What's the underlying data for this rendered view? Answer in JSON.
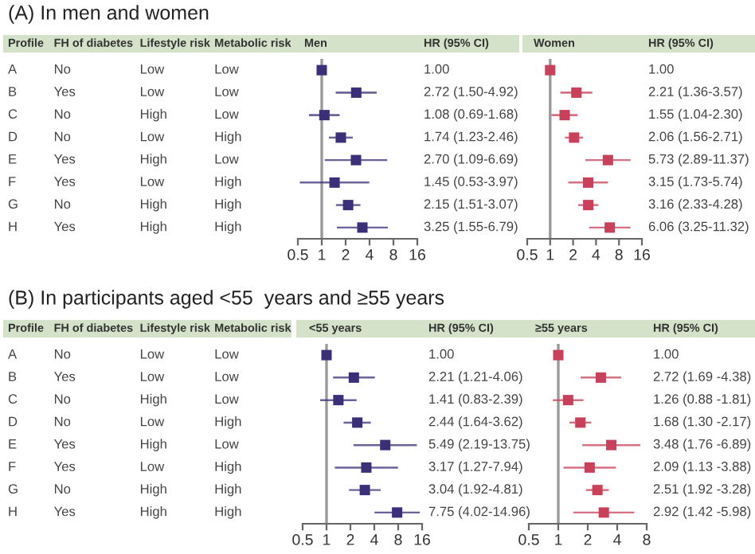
{
  "chart_data": [
    {
      "type": "other",
      "title": "(A) In men and women",
      "categories": [
        "Profile",
        "FH of diabetes",
        "Lifestyle risk",
        "Metabolic risk"
      ],
      "annotations": [
        "A",
        "No",
        "Low",
        "Low",
        "B",
        "Yes",
        "Low",
        "Low",
        "C",
        "No",
        "High",
        "Low",
        "D",
        "No",
        "Low",
        "High",
        "E",
        "Yes",
        "High",
        "Low",
        "F",
        "Yes",
        "Low",
        "High",
        "G",
        "No",
        "High",
        "High",
        "H",
        "Yes",
        "High",
        "High"
      ]
    },
    {
      "type": "scatter",
      "orientation": "horizontal",
      "title": "Men",
      "categories": [
        null,
        null,
        null,
        null,
        null,
        null,
        null,
        null
      ],
      "color": "#3b2f7a",
      "marker": "square",
      "log": "x",
      "tick_labels": "x",
      "grid": false,
      "values": [
        1.0,
        2.72,
        1.08,
        1.74,
        2.7,
        1.45,
        2.15,
        3.25
      ],
      "errors": [
        null,
        [
          1.5,
          4.92
        ],
        [
          0.69,
          1.68
        ],
        [
          1.23,
          2.46
        ],
        [
          1.09,
          6.69
        ],
        [
          0.53,
          3.97
        ],
        [
          1.51,
          3.07
        ],
        [
          1.55,
          6.79
        ]
      ],
      "xlim": [
        0.5,
        16
      ],
      "xticks": [
        0.5,
        1,
        2,
        4,
        8,
        16
      ],
      "ref_lines": [
        {
          "axis": "x",
          "value": 1,
          "color": "#999999"
        }
      ]
    },
    {
      "type": "other",
      "categories": [
        "HR (95% CI)"
      ],
      "annotations": [
        "1.00",
        "2.72 (1.50-4.92)",
        "1.08 (0.69-1.68)",
        "1.74 (1.23-2.46)",
        "2.70 (1.09-6.69)",
        "1.45 (0.53-3.97)",
        "2.15 (1.51-3.07)",
        "3.25 (1.55-6.79)"
      ]
    },
    {
      "type": "scatter",
      "orientation": "horizontal",
      "title": "Women",
      "categories": [
        null,
        null,
        null,
        null,
        null,
        null,
        null,
        null
      ],
      "color": "#c8405a",
      "marker": "square",
      "log": "x",
      "tick_labels": "x",
      "grid": false,
      "values": [
        1.0,
        2.21,
        1.55,
        2.06,
        5.73,
        3.15,
        3.16,
        6.06
      ],
      "errors": [
        null,
        [
          1.36,
          3.57
        ],
        [
          1.04,
          2.3
        ],
        [
          1.56,
          2.71
        ],
        [
          2.89,
          11.37
        ],
        [
          1.73,
          5.74
        ],
        [
          2.33,
          4.28
        ],
        [
          3.25,
          11.32
        ]
      ],
      "xlim": [
        0.5,
        16
      ],
      "xticks": [
        0.5,
        1,
        2,
        4,
        8,
        16
      ],
      "ref_lines": [
        {
          "axis": "x",
          "value": 1,
          "color": "#999999"
        }
      ]
    },
    {
      "type": "other",
      "categories": [
        "HR (95% CI)"
      ],
      "annotations": [
        "1.00",
        "2.21 (1.36-3.57)",
        "1.55 (1.04-2.30)",
        "2.06 (1.56-2.71)",
        "5.73 (2.89-11.37)",
        "3.15 (1.73-5.74)",
        "3.16 (2.33-4.28)",
        "6.06 (3.25-11.32)"
      ]
    },
    {
      "type": "other",
      "title": "(B) In participants aged <55  years and ≥55 years",
      "categories": [
        "Profile",
        "FH of diabetes",
        "Lifestyle risk",
        "Metabolic risk"
      ],
      "annotations": [
        "A",
        "No",
        "Low",
        "Low",
        "B",
        "Yes",
        "Low",
        "Low",
        "C",
        "No",
        "High",
        "Low",
        "D",
        "No",
        "Low",
        "High",
        "E",
        "Yes",
        "High",
        "Low",
        "F",
        "Yes",
        "Low",
        "High",
        "G",
        "No",
        "High",
        "High",
        "H",
        "Yes",
        "High",
        "High"
      ]
    },
    {
      "type": "scatter",
      "orientation": "horizontal",
      "title": "<55 years",
      "categories": [
        null,
        null,
        null,
        null,
        null,
        null,
        null,
        null
      ],
      "color": "#3b2f7a",
      "marker": "square",
      "log": "x",
      "tick_labels": "x",
      "grid": false,
      "values": [
        1.0,
        2.21,
        1.41,
        2.44,
        5.49,
        3.17,
        3.04,
        7.75
      ],
      "errors": [
        null,
        [
          1.21,
          4.06
        ],
        [
          0.83,
          2.39
        ],
        [
          1.64,
          3.62
        ],
        [
          2.19,
          13.75
        ],
        [
          1.27,
          7.94
        ],
        [
          1.92,
          4.81
        ],
        [
          4.02,
          14.96
        ]
      ],
      "xlim": [
        0.5,
        16
      ],
      "xticks": [
        0.5,
        1,
        2,
        4,
        8,
        16
      ],
      "ref_lines": [
        {
          "axis": "x",
          "value": 1,
          "color": "#999999"
        }
      ]
    },
    {
      "type": "other",
      "categories": [
        "HR (95% CI)"
      ],
      "annotations": [
        "1.00",
        "2.21 (1.21-4.06)",
        "1.41 (0.83-2.39)",
        "2.44 (1.64-3.62)",
        "5.49 (2.19-13.75)",
        "3.17 (1.27-7.94)",
        "3.04 (1.92-4.81)",
        "7.75 (4.02-14.96)"
      ]
    },
    {
      "type": "scatter",
      "orientation": "horizontal",
      "title": "≥55 years",
      "categories": [
        null,
        null,
        null,
        null,
        null,
        null,
        null,
        null
      ],
      "color": "#c8405a",
      "marker": "square",
      "log": "x",
      "tick_labels": "x",
      "grid": false,
      "values": [
        1.0,
        2.72,
        1.26,
        1.68,
        3.48,
        2.09,
        2.51,
        2.92
      ],
      "errors": [
        null,
        [
          1.69,
          4.38
        ],
        [
          0.88,
          1.81
        ],
        [
          1.3,
          2.17
        ],
        [
          1.76,
          6.89
        ],
        [
          1.13,
          3.88
        ],
        [
          1.92,
          3.28
        ],
        [
          1.42,
          5.98
        ]
      ],
      "xlim": [
        0.5,
        8
      ],
      "xticks": [
        0.5,
        1,
        2,
        4,
        8
      ],
      "ref_lines": [
        {
          "axis": "x",
          "value": 1,
          "color": "#999999"
        }
      ]
    },
    {
      "type": "other",
      "categories": [
        "HR (95% CI)"
      ],
      "annotations": [
        "1.00",
        "2.72 (1.69 -4.38)",
        "1.26 (0.88 -1.81)",
        "1.68 (1.30 -2.17)",
        "3.48 (1.76 -6.89)",
        "2.09 (1.13 -3.88)",
        "2.51 (1.92 -3.28)",
        "2.92 (1.42 -5.98)"
      ]
    }
  ]
}
